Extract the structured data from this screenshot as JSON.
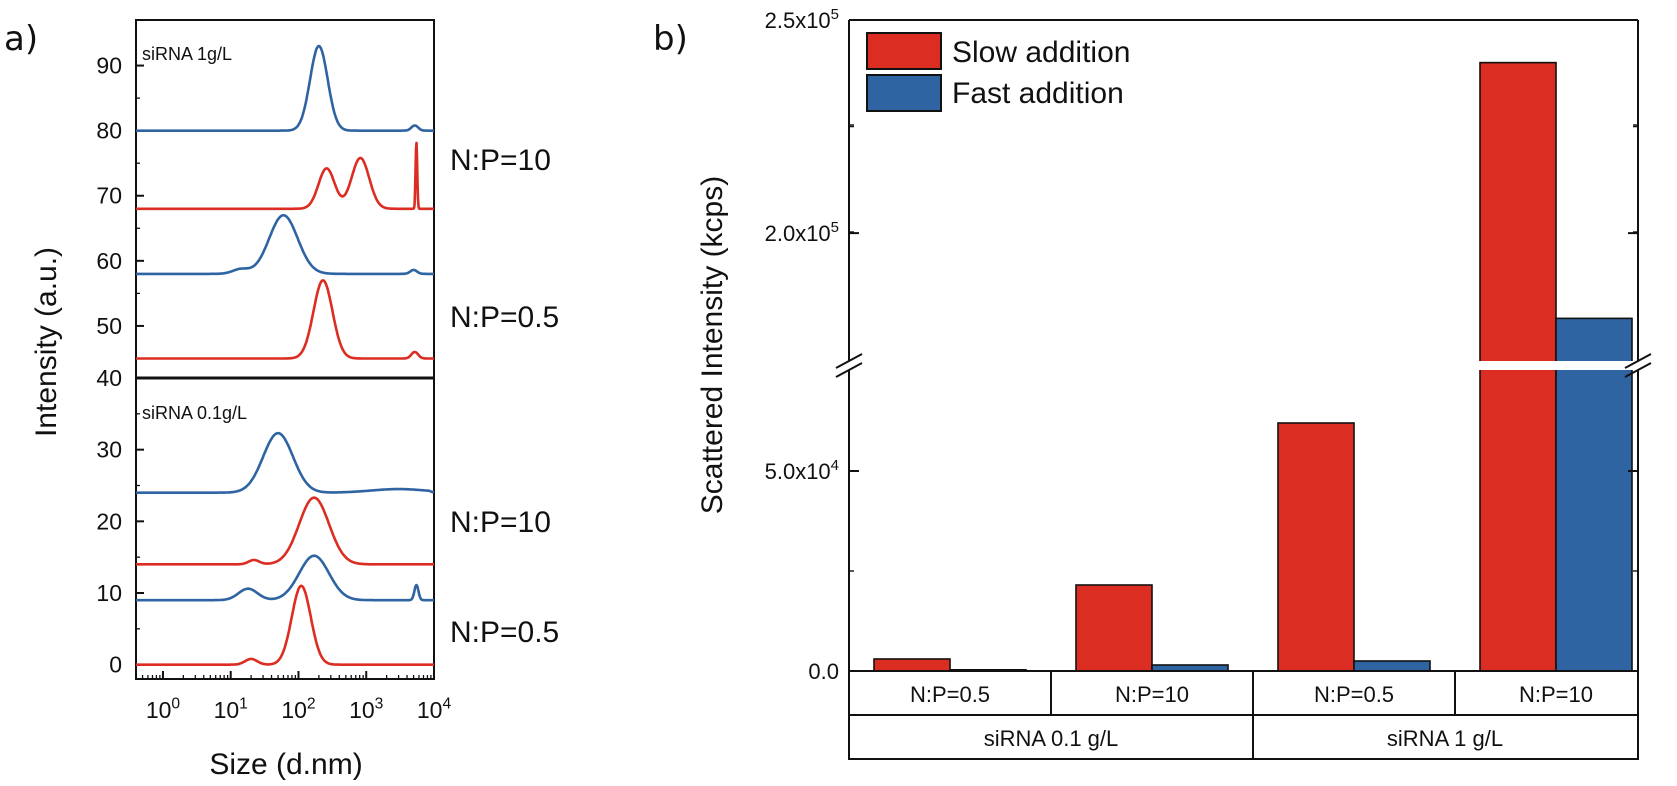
{
  "colors": {
    "red": "#dc2d23",
    "blue": "#2f64a2",
    "axis": "#111111"
  },
  "chart_data": [
    {
      "type": "line",
      "panel_label": "a)",
      "xlabel": "Size (d.nm)",
      "ylabel": "Intensity (a.u.)",
      "x_scale": "log",
      "xlim": [
        0.4,
        10000
      ],
      "x_ticks": [
        "10^0",
        "10^1",
        "10^2",
        "10^3",
        "10^4"
      ],
      "sub_panels": [
        {
          "title": "siRNA 1g/L",
          "ylim": [
            42,
            97
          ],
          "y_ticks": [
            50,
            60,
            70,
            80,
            90
          ],
          "series": [
            {
              "color": "blue",
              "baseline": 80,
              "peaks": [
                [
                  200,
                  13,
                  0.13
                ],
                [
                  5200,
                  0.8,
                  0.05
                ]
              ]
            },
            {
              "color": "red",
              "baseline": 68,
              "peaks": [
                [
                  260,
                  6.2,
                  0.12
                ],
                [
                  820,
                  7.8,
                  0.13
                ],
                [
                  5500,
                  10.2,
                  0.012
                ]
              ]
            },
            {
              "color": "blue",
              "baseline": 58,
              "peaks": [
                [
                  14,
                  0.7,
                  0.12
                ],
                [
                  60,
                  9,
                  0.21
                ],
                [
                  5000,
                  0.6,
                  0.05
                ]
              ]
            },
            {
              "color": "red",
              "baseline": 45,
              "peaks": [
                [
                  230,
                  12,
                  0.14
                ],
                [
                  5200,
                  1,
                  0.05
                ]
              ]
            }
          ]
        },
        {
          "title": "siRNA 0.1g/L",
          "ylim": [
            -2,
            40
          ],
          "y_ticks": [
            0,
            10,
            20,
            30,
            40
          ],
          "series": [
            {
              "color": "blue",
              "baseline": 24,
              "peaks": [
                [
                  50,
                  8.3,
                  0.22
                ],
                [
                  3000,
                  0.5,
                  0.4
                ]
              ]
            },
            {
              "color": "red",
              "baseline": 14,
              "peaks": [
                [
                  22,
                  0.6,
                  0.08
                ],
                [
                  170,
                  9.3,
                  0.22
                ]
              ]
            },
            {
              "color": "blue",
              "baseline": 9,
              "peaks": [
                [
                  18,
                  1.6,
                  0.14
                ],
                [
                  170,
                  6.2,
                  0.22
                ],
                [
                  5500,
                  2.1,
                  0.03
                ]
              ]
            },
            {
              "color": "red",
              "baseline": 0,
              "peaks": [
                [
                  20,
                  0.8,
                  0.09
                ],
                [
                  110,
                  11,
                  0.14
                ]
              ]
            }
          ]
        }
      ],
      "annotations": [
        "N:P=10",
        "N:P=0.5",
        "N:P=10",
        "N:P=0.5"
      ]
    },
    {
      "type": "bar",
      "panel_label": "b)",
      "ylabel": "Scattered Intensity (kcps)",
      "y_axis_break": [
        70000,
        170000
      ],
      "y_tick_labels": [
        "0.0",
        "5.0x10^4",
        "2.0x10^5",
        "2.5x10^5"
      ],
      "y_tick_values": [
        0,
        50000,
        200000,
        250000
      ],
      "legend_position": "top-left",
      "categories": [
        "N:P=0.5",
        "N:P=10",
        "N:P=0.5",
        "N:P=10"
      ],
      "groups": [
        {
          "label": "siRNA 0.1 g/L",
          "span": [
            0,
            1
          ]
        },
        {
          "label": "siRNA 1 g/L",
          "span": [
            2,
            3
          ]
        }
      ],
      "series": [
        {
          "name": "Slow addition",
          "color": "red",
          "values": [
            3000,
            21500,
            62000,
            240000
          ]
        },
        {
          "name": "Fast addition",
          "color": "blue",
          "values": [
            300,
            1500,
            2500,
            180000
          ]
        }
      ]
    }
  ]
}
